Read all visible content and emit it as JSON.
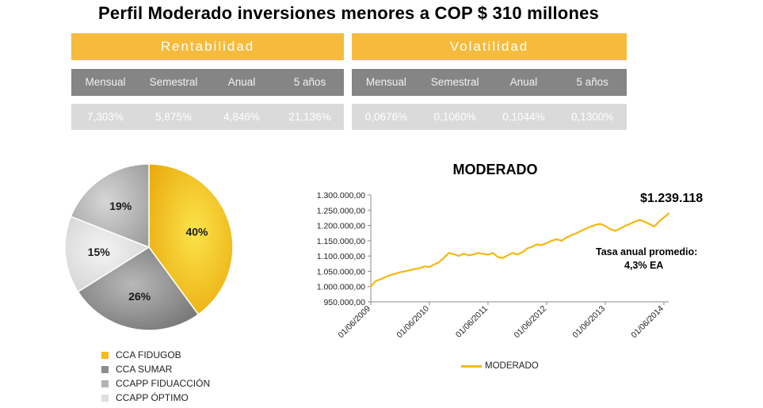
{
  "title": "Perfil Moderado inversiones menores a COP $ 310 millones",
  "rentabilidad": {
    "header": "Rentabilidad",
    "columns": [
      "Mensual",
      "Semestral",
      "Anual",
      "5 años"
    ],
    "values": [
      "7,303%",
      "5,875%",
      "4,846%",
      "21,136%"
    ]
  },
  "volatilidad": {
    "header": "Volatilidad",
    "columns": [
      "Mensual",
      "Semestral",
      "Anual",
      "5 años"
    ],
    "values": [
      "0,0676%",
      "0,1060%",
      "0,1044%",
      "0,1300%"
    ]
  },
  "colors": {
    "accent": "#f6bb3c",
    "header_gray": "#858585",
    "row_gray": "#dadada",
    "line": "#f5b70f"
  },
  "annotations": {
    "final_value": "$1.239.118",
    "rate_label": "Tasa anual promedio:",
    "rate_value": "4,3%  EA"
  },
  "chart_data": [
    {
      "type": "pie",
      "labels": [
        "CCA FIDUGOB",
        "CCA SUMAR",
        "CCAPP FIDUACCIÓN",
        "CCAPP ÓPTIMO"
      ],
      "values": [
        40,
        26,
        15,
        19
      ],
      "display_labels": [
        "40%",
        "26%",
        "15%",
        "19%"
      ],
      "colors": [
        "#f5bb1c",
        "#8c8c8c",
        "#dedede",
        "#b3b3b3"
      ],
      "legend_position": "bottom"
    },
    {
      "type": "line",
      "title": "MODERADO",
      "x_ticks": [
        "01/06/2009",
        "01/06/2010",
        "01/06/2011",
        "01/06/2012",
        "01/06/2013",
        "01/06/2014"
      ],
      "y_ticks": [
        "950.000,00",
        "1.000.000,00",
        "1.050.000,00",
        "1.100.000,00",
        "1.150.000,00",
        "1.200.000,00",
        "1.250.000,00",
        "1.300.000,00"
      ],
      "ylim": [
        950000,
        1300000
      ],
      "xlim": [
        "2009-06-01",
        "2014-07-01"
      ],
      "grid": false,
      "legend_position": "bottom",
      "series": [
        {
          "name": "MODERADO",
          "x": [
            "2009-06-01",
            "2009-07-01",
            "2009-08-01",
            "2009-09-01",
            "2009-10-01",
            "2009-11-01",
            "2009-12-01",
            "2010-01-01",
            "2010-02-01",
            "2010-03-01",
            "2010-04-01",
            "2010-05-01",
            "2010-06-01",
            "2010-07-01",
            "2010-08-01",
            "2010-09-01",
            "2010-10-01",
            "2010-11-01",
            "2010-12-01",
            "2011-01-01",
            "2011-02-01",
            "2011-03-01",
            "2011-04-01",
            "2011-05-01",
            "2011-06-01",
            "2011-07-01",
            "2011-08-01",
            "2011-09-01",
            "2011-10-01",
            "2011-11-01",
            "2011-12-01",
            "2012-01-01",
            "2012-02-01",
            "2012-03-01",
            "2012-04-01",
            "2012-05-01",
            "2012-06-01",
            "2012-07-01",
            "2012-08-01",
            "2012-09-01",
            "2012-10-01",
            "2012-11-01",
            "2012-12-01",
            "2013-01-01",
            "2013-02-01",
            "2013-03-01",
            "2013-04-01",
            "2013-05-01",
            "2013-06-01",
            "2013-07-01",
            "2013-08-01",
            "2013-09-01",
            "2013-10-01",
            "2013-11-01",
            "2013-12-01",
            "2014-01-01",
            "2014-02-01",
            "2014-03-01",
            "2014-04-01",
            "2014-05-01",
            "2014-06-01",
            "2014-07-01"
          ],
          "y": [
            1000000,
            1018000,
            1024000,
            1031000,
            1038000,
            1042000,
            1047000,
            1050000,
            1054000,
            1057000,
            1060000,
            1066000,
            1064000,
            1072000,
            1080000,
            1095000,
            1110000,
            1106000,
            1100000,
            1108000,
            1102000,
            1105000,
            1110000,
            1107000,
            1104000,
            1110000,
            1097000,
            1093000,
            1102000,
            1110000,
            1105000,
            1112000,
            1125000,
            1130000,
            1138000,
            1136000,
            1142000,
            1150000,
            1155000,
            1150000,
            1160000,
            1168000,
            1174000,
            1182000,
            1190000,
            1196000,
            1202000,
            1205000,
            1198000,
            1188000,
            1182000,
            1190000,
            1198000,
            1205000,
            1212000,
            1218000,
            1212000,
            1205000,
            1196000,
            1212000,
            1226000,
            1239118
          ]
        }
      ]
    }
  ],
  "legend_line_label": "MODERADO"
}
